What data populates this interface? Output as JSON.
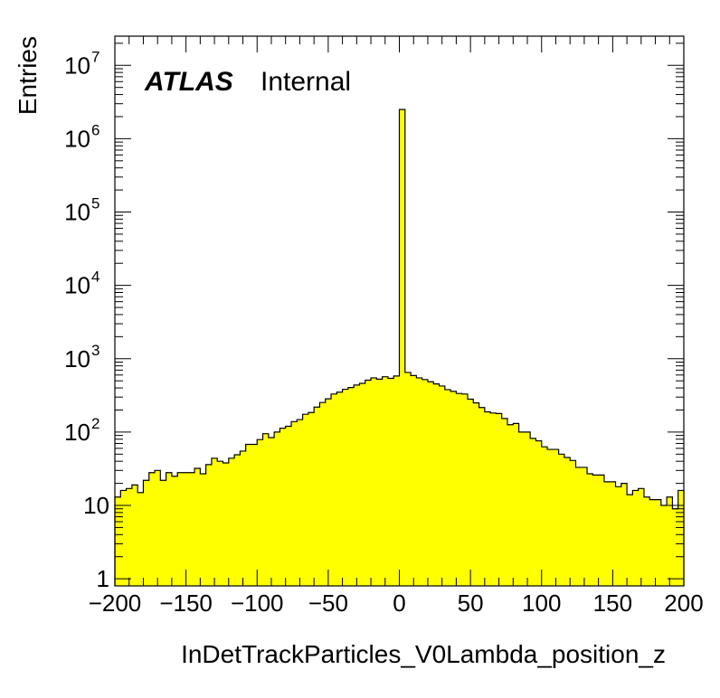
{
  "chart_data": {
    "type": "bar",
    "histogram": true,
    "xlabel": "InDetTrackParticles_V0Lambda_position_z",
    "ylabel": "Entries",
    "xlim": [
      -200,
      200
    ],
    "ylim": [
      0.8,
      25000000
    ],
    "log_y": true,
    "grid": false,
    "legend": "none",
    "fill_color": "#ffff00",
    "line_color": "#000000",
    "annotation": {
      "bold": "ATLAS",
      "normal": "Internal"
    },
    "x_ticks": [
      -200,
      -150,
      -100,
      -50,
      0,
      50,
      100,
      150,
      200
    ],
    "x_tick_labels": [
      "−200",
      "−150",
      "−100",
      "−50",
      "0",
      "50",
      "100",
      "150",
      "200"
    ],
    "y_ticks": [
      {
        "value": 1,
        "base": "1",
        "exp": ""
      },
      {
        "value": 10,
        "base": "10",
        "exp": ""
      },
      {
        "value": 100,
        "base": "10",
        "exp": "2"
      },
      {
        "value": 1000,
        "base": "10",
        "exp": "3"
      },
      {
        "value": 10000,
        "base": "10",
        "exp": "4"
      },
      {
        "value": 100000,
        "base": "10",
        "exp": "5"
      },
      {
        "value": 1000000,
        "base": "10",
        "exp": "6"
      },
      {
        "value": 10000000,
        "base": "10",
        "exp": "7"
      }
    ],
    "bin_width": 4,
    "bin_low_edges": [
      -200,
      -196,
      -192,
      -188,
      -184,
      -180,
      -176,
      -172,
      -168,
      -164,
      -160,
      -156,
      -152,
      -148,
      -144,
      -140,
      -136,
      -132,
      -128,
      -124,
      -120,
      -116,
      -112,
      -108,
      -104,
      -100,
      -96,
      -92,
      -88,
      -84,
      -80,
      -76,
      -72,
      -68,
      -64,
      -60,
      -56,
      -52,
      -48,
      -44,
      -40,
      -36,
      -32,
      -28,
      -24,
      -20,
      -16,
      -12,
      -8,
      -4,
      0,
      4,
      8,
      12,
      16,
      20,
      24,
      28,
      32,
      36,
      40,
      44,
      48,
      52,
      56,
      60,
      64,
      68,
      72,
      76,
      80,
      84,
      88,
      92,
      96,
      100,
      104,
      108,
      112,
      116,
      120,
      124,
      128,
      132,
      136,
      140,
      144,
      148,
      152,
      156,
      160,
      164,
      168,
      172,
      176,
      180,
      184,
      188,
      192,
      196
    ],
    "values": [
      13,
      16,
      17,
      19,
      15,
      22,
      28,
      30,
      22,
      28,
      25,
      28,
      28,
      28,
      32,
      27,
      36,
      44,
      40,
      38,
      44,
      49,
      55,
      68,
      68,
      79,
      95,
      84,
      100,
      113,
      120,
      139,
      148,
      175,
      185,
      219,
      253,
      284,
      330,
      350,
      383,
      405,
      438,
      462,
      510,
      548,
      526,
      568,
      540,
      582,
      2500000,
      650,
      590,
      548,
      520,
      485,
      454,
      425,
      379,
      359,
      336,
      330,
      281,
      250,
      216,
      189,
      182,
      179,
      153,
      126,
      131,
      100,
      100,
      82,
      76,
      63,
      58,
      58,
      50,
      45,
      41,
      33,
      33,
      27,
      26,
      26,
      21,
      21,
      18,
      20,
      14,
      16,
      17,
      13,
      12,
      12,
      10,
      13,
      9,
      16
    ]
  }
}
